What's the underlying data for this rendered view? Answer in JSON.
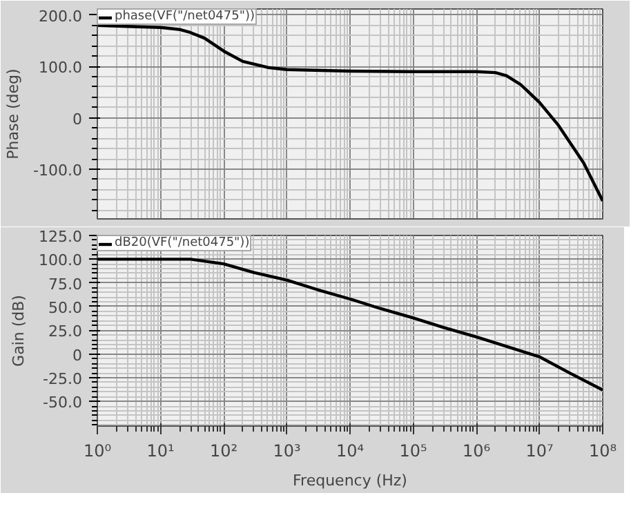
{
  "chart_data": [
    {
      "type": "line",
      "ylabel": "Phase (deg)",
      "log": "x",
      "grid": true,
      "legend": "top left",
      "tick_labels": "y",
      "xlim": [
        1,
        100000000
      ],
      "xticks": [
        {
          "value": 1,
          "label": null
        },
        {
          "value": 10,
          "label": null
        },
        {
          "value": 100,
          "label": null
        },
        {
          "value": 1000,
          "label": null
        },
        {
          "value": 10000,
          "label": null
        },
        {
          "value": 100000,
          "label": null
        },
        {
          "value": 1000000,
          "label": null
        },
        {
          "value": 10000000,
          "label": null
        },
        {
          "value": 100000000,
          "label": null
        }
      ],
      "ylim": [
        -197,
        212
      ],
      "yticks": [
        {
          "value": 200,
          "label": "200.0"
        },
        {
          "value": 100,
          "label": "100.0"
        },
        {
          "value": 0,
          "label": "0"
        },
        {
          "value": -100,
          "label": "-100.0"
        }
      ],
      "series": [
        {
          "name": "phase(VF(\"/net0475\"))",
          "color": "#000000",
          "x": [
            1,
            3,
            10,
            20,
            30,
            50,
            100,
            200,
            500,
            1000,
            10000,
            100000,
            1000000,
            2000000,
            3000000,
            5000000,
            10000000,
            20000000,
            50000000,
            100000000
          ],
          "values": [
            180,
            178,
            176,
            172,
            166,
            155,
            130,
            110,
            98,
            94,
            91,
            90,
            90,
            88,
            82,
            65,
            30,
            -15,
            -88,
            -162
          ]
        }
      ]
    },
    {
      "type": "line",
      "xlabel": "Frequency (Hz)",
      "ylabel": "Gain (dB)",
      "log": "x",
      "grid": true,
      "legend": "top left",
      "xlim": [
        1,
        100000000
      ],
      "xticks": [
        {
          "value": 1,
          "label": "10⁰"
        },
        {
          "value": 10,
          "label": "10¹"
        },
        {
          "value": 100,
          "label": "10²"
        },
        {
          "value": 1000,
          "label": "10³"
        },
        {
          "value": 10000,
          "label": "10⁴"
        },
        {
          "value": 100000,
          "label": "10⁵"
        },
        {
          "value": 1000000,
          "label": "10⁶"
        },
        {
          "value": 10000000,
          "label": "10⁷"
        },
        {
          "value": 100000000,
          "label": "10⁸"
        }
      ],
      "ylim": [
        -76,
        125
      ],
      "yticks": [
        {
          "value": 125,
          "label": "125.0"
        },
        {
          "value": 100,
          "label": "100.0"
        },
        {
          "value": 75,
          "label": "75.0"
        },
        {
          "value": 50,
          "label": "50.0"
        },
        {
          "value": 25,
          "label": "25.0"
        },
        {
          "value": 0,
          "label": "0"
        },
        {
          "value": -25,
          "label": "-25.0"
        },
        {
          "value": -50,
          "label": "-50.0"
        }
      ],
      "series": [
        {
          "name": "dB20(VF(\"/net0475\"))",
          "color": "#000000",
          "x": [
            1,
            10,
            30,
            100,
            300,
            1000,
            3000,
            10000,
            30000,
            100000,
            300000,
            1000000,
            3000000,
            10000000,
            30000000,
            100000000
          ],
          "values": [
            100,
            100,
            100,
            95,
            86,
            78,
            68,
            58,
            48,
            38,
            28,
            18,
            8,
            -3,
            -20,
            -38
          ]
        }
      ]
    }
  ]
}
